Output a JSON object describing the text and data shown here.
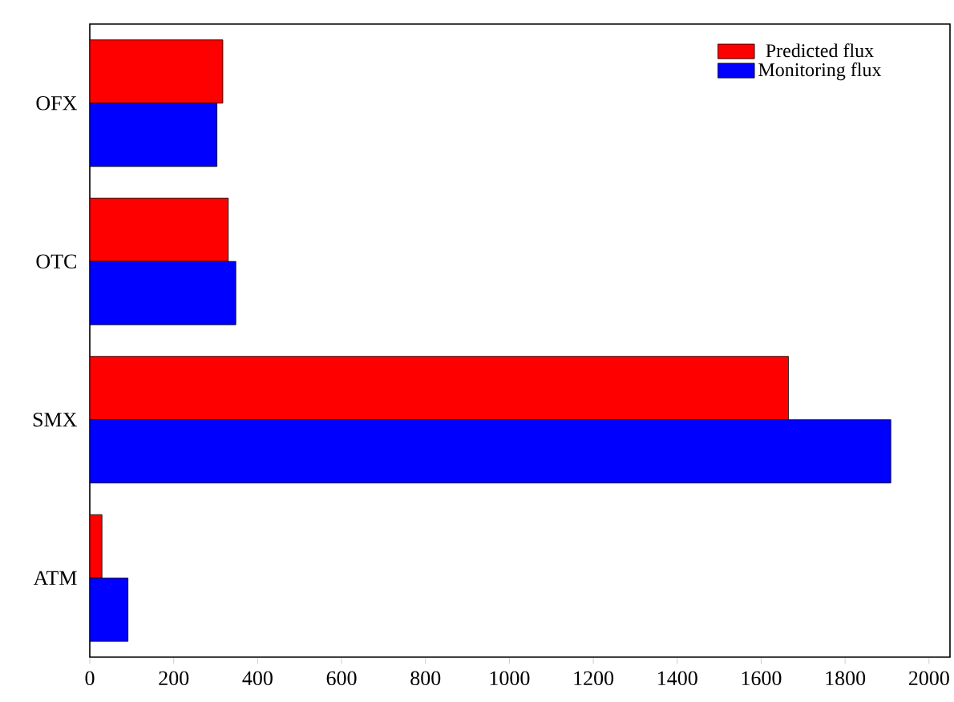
{
  "chart_data": {
    "type": "bar",
    "orientation": "horizontal",
    "categories": [
      "OFX",
      "OTC",
      "SMX",
      "ATM"
    ],
    "series": [
      {
        "name": "Predicted flux",
        "color": "#ff0000",
        "values": [
          317,
          330,
          1665,
          29
        ]
      },
      {
        "name": "Monitoring flux",
        "color": "#0000ff",
        "values": [
          303,
          348,
          1909,
          91
        ]
      }
    ],
    "xlim": [
      0,
      2050
    ],
    "xticks": [
      0,
      200,
      400,
      600,
      800,
      1000,
      1200,
      1400,
      1600,
      1800,
      2000
    ],
    "legend": "top right"
  }
}
